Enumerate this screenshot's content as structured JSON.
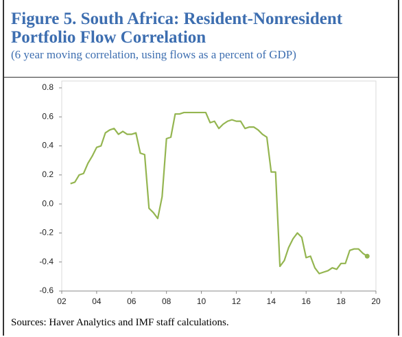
{
  "chart_data": {
    "type": "line",
    "title": "Figure 5. South Africa: Resident-Nonresident Portfolio Flow Correlation",
    "subtitle": "(6 year moving correlation, using flows as a percent of GDP)",
    "source": "Sources: Haver Analytics and IMF staff calculations.",
    "x": [
      2.5,
      2.75,
      3.0,
      3.25,
      3.5,
      3.75,
      4.0,
      4.25,
      4.5,
      4.75,
      5.0,
      5.25,
      5.5,
      5.75,
      6.0,
      6.25,
      6.5,
      6.75,
      7.0,
      7.25,
      7.5,
      7.75,
      8.0,
      8.25,
      8.5,
      8.75,
      9.0,
      9.25,
      9.5,
      9.75,
      10.0,
      10.25,
      10.5,
      10.75,
      11.0,
      11.25,
      11.5,
      11.75,
      12.0,
      12.25,
      12.5,
      12.75,
      13.0,
      13.25,
      13.5,
      13.75,
      14.0,
      14.25,
      14.5,
      14.75,
      15.0,
      15.25,
      15.5,
      15.75,
      16.0,
      16.25,
      16.5,
      16.75,
      17.0,
      17.25,
      17.5,
      17.75,
      18.0,
      18.25,
      18.5,
      18.75,
      19.0,
      19.25,
      19.5
    ],
    "series": [
      {
        "color": "#94b550",
        "end_marker": true,
        "values": [
          0.14,
          0.15,
          0.2,
          0.21,
          0.28,
          0.33,
          0.39,
          0.4,
          0.49,
          0.51,
          0.52,
          0.48,
          0.5,
          0.48,
          0.48,
          0.49,
          0.35,
          0.34,
          -0.03,
          -0.06,
          -0.1,
          0.05,
          0.45,
          0.46,
          0.62,
          0.62,
          0.63,
          0.63,
          0.63,
          0.63,
          0.63,
          0.63,
          0.56,
          0.57,
          0.52,
          0.55,
          0.57,
          0.58,
          0.57,
          0.57,
          0.52,
          0.53,
          0.53,
          0.51,
          0.48,
          0.46,
          0.22,
          0.22,
          -0.43,
          -0.39,
          -0.3,
          -0.24,
          -0.2,
          -0.23,
          -0.37,
          -0.36,
          -0.44,
          -0.48,
          -0.47,
          -0.46,
          -0.44,
          -0.45,
          -0.41,
          -0.41,
          -0.32,
          -0.31,
          -0.31,
          -0.34,
          -0.36
        ]
      }
    ],
    "xlim": [
      2,
      20
    ],
    "xticks": [
      {
        "value": 2,
        "label": "02"
      },
      {
        "value": 4,
        "label": "04"
      },
      {
        "value": 6,
        "label": "06"
      },
      {
        "value": 8,
        "label": "08"
      },
      10,
      12,
      14,
      16,
      18,
      20
    ],
    "ylim": [
      -0.6,
      0.8
    ],
    "yticks": [
      -0.6,
      -0.4,
      -0.2,
      {
        "value": 0,
        "label": "0.0"
      },
      0.2,
      0.4,
      0.6,
      0.8
    ]
  }
}
